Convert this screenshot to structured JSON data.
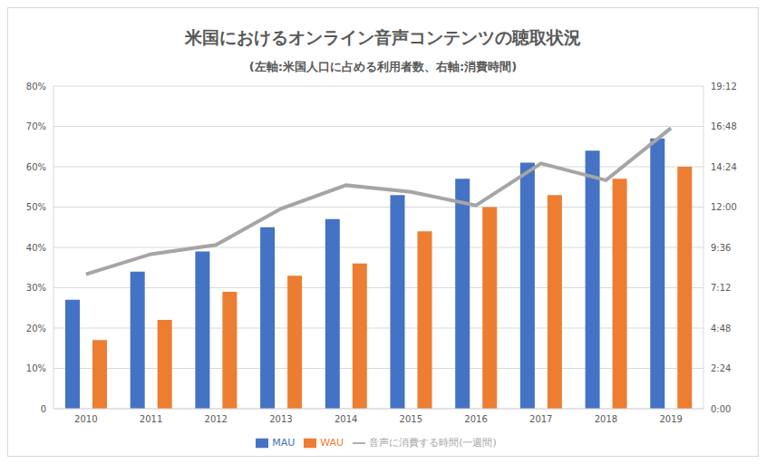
{
  "chart_data": {
    "type": "bar",
    "title": "米国におけるオンライン音声コンテンツの聴取状況",
    "subtitle": "(左軸:米国人口に占める利用者数、右軸:消費時間)",
    "categories": [
      "2010",
      "2011",
      "2012",
      "2013",
      "2014",
      "2015",
      "2016",
      "2017",
      "2018",
      "2019"
    ],
    "series": [
      {
        "name": "MAU",
        "type": "bar",
        "color": "#4472c4",
        "values": [
          27,
          34,
          39,
          45,
          47,
          53,
          57,
          61,
          64,
          67
        ]
      },
      {
        "name": "WAU",
        "type": "bar",
        "color": "#ed7d31",
        "values": [
          17,
          22,
          29,
          33,
          36,
          44,
          50,
          53,
          57,
          60
        ]
      },
      {
        "name": "音声に消費する時間(一週間)",
        "type": "line",
        "axis": "y2",
        "color": "#a5a5a5",
        "marker": "none",
        "values": [
          8.0,
          9.2,
          9.75,
          11.9,
          13.3,
          12.9,
          12.1,
          14.6,
          13.6,
          16.7
        ]
      }
    ],
    "ylim": [
      0,
      80
    ],
    "yticks": [
      0,
      {
        "value": 10,
        "label": "10%"
      },
      {
        "value": 20,
        "label": "20%"
      },
      {
        "value": 30,
        "label": "30%"
      },
      {
        "value": 40,
        "label": "40%"
      },
      {
        "value": 50,
        "label": "50%"
      },
      {
        "value": 60,
        "label": "60%"
      },
      {
        "value": 70,
        "label": "70%"
      },
      {
        "value": 80,
        "label": "80%"
      }
    ],
    "y2lim": [
      0,
      19.2
    ],
    "y2ticks": [
      {
        "value": 0,
        "label": "0:00"
      },
      {
        "value": 2.4,
        "label": "2:24"
      },
      {
        "value": 4.8,
        "label": "4:48"
      },
      {
        "value": 7.2,
        "label": "7:12"
      },
      {
        "value": 9.6,
        "label": "9:36"
      },
      {
        "value": 12,
        "label": "12:00"
      },
      {
        "value": 14.4,
        "label": "14:24"
      },
      {
        "value": 16.8,
        "label": "16:48"
      },
      {
        "value": 19.2,
        "label": "19:12"
      }
    ],
    "grid": true,
    "legend": "bottom"
  }
}
